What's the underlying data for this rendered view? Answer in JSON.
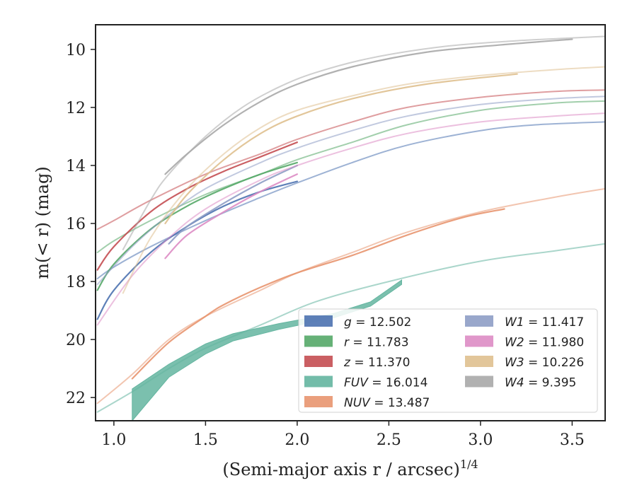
{
  "chart_data": {
    "type": "line",
    "title": "",
    "xlabel": "(Semi-major axis r / arcsec)",
    "xlabel_power": "1/4",
    "ylabel": "m(< r) (mag)",
    "xlim": [
      0.9,
      3.68
    ],
    "ylim": [
      22.8,
      9.15
    ],
    "y_inverted": true,
    "x_ticks": [
      1.0,
      1.5,
      2.0,
      2.5,
      3.0,
      3.5
    ],
    "x_tick_labels": [
      "1.0",
      "1.5",
      "2.0",
      "2.5",
      "3.0",
      "3.5"
    ],
    "y_ticks": [
      10,
      12,
      14,
      16,
      18,
      20,
      22
    ],
    "y_tick_labels": [
      "10",
      "12",
      "14",
      "16",
      "18",
      "20",
      "22"
    ],
    "grid": false,
    "legend_position": "lower-right",
    "series": [
      {
        "name": "g",
        "value": "12.502",
        "color": "#4c72b0",
        "curves": [
          [
            [
              0.91,
              17.9
            ],
            [
              1.0,
              17.5
            ],
            [
              1.2,
              16.8
            ],
            [
              1.5,
              15.9
            ],
            [
              1.8,
              15.1
            ],
            [
              2.0,
              14.6
            ],
            [
              2.3,
              13.9
            ],
            [
              2.6,
              13.3
            ],
            [
              3.0,
              12.8
            ],
            [
              3.3,
              12.6
            ],
            [
              3.68,
              12.5
            ]
          ],
          [
            [
              0.91,
              19.3
            ],
            [
              1.0,
              18.3
            ],
            [
              1.2,
              17.0
            ],
            [
              1.4,
              16.1
            ],
            [
              1.6,
              15.4
            ],
            [
              1.8,
              14.9
            ],
            [
              2.0,
              14.55
            ]
          ]
        ]
      },
      {
        "name": "r",
        "value": "11.783",
        "color": "#55a868",
        "curves": [
          [
            [
              0.91,
              17.0
            ],
            [
              1.0,
              16.6
            ],
            [
              1.2,
              15.9
            ],
            [
              1.5,
              15.0
            ],
            [
              1.8,
              14.3
            ],
            [
              2.0,
              13.8
            ],
            [
              2.3,
              13.2
            ],
            [
              2.6,
              12.6
            ],
            [
              3.0,
              12.1
            ],
            [
              3.4,
              11.85
            ],
            [
              3.68,
              11.78
            ]
          ],
          [
            [
              0.91,
              18.3
            ],
            [
              1.0,
              17.4
            ],
            [
              1.2,
              16.2
            ],
            [
              1.4,
              15.4
            ],
            [
              1.6,
              14.8
            ],
            [
              1.8,
              14.3
            ],
            [
              2.0,
              13.9
            ]
          ]
        ]
      },
      {
        "name": "z",
        "value": "11.370",
        "color": "#c44e52",
        "curves": [
          [
            [
              0.91,
              16.2
            ],
            [
              1.0,
              15.9
            ],
            [
              1.2,
              15.2
            ],
            [
              1.5,
              14.3
            ],
            [
              1.8,
              13.6
            ],
            [
              2.0,
              13.1
            ],
            [
              2.3,
              12.5
            ],
            [
              2.6,
              12.0
            ],
            [
              3.0,
              11.65
            ],
            [
              3.4,
              11.45
            ],
            [
              3.68,
              11.4
            ]
          ],
          [
            [
              0.91,
              17.6
            ],
            [
              1.0,
              16.8
            ],
            [
              1.2,
              15.6
            ],
            [
              1.4,
              14.8
            ],
            [
              1.6,
              14.2
            ],
            [
              1.8,
              13.7
            ],
            [
              2.0,
              13.2
            ]
          ]
        ]
      },
      {
        "name": "FUV",
        "value": "16.014",
        "color": "#64b5a0",
        "curves": [
          [
            [
              0.91,
              22.5
            ],
            [
              1.1,
              21.8
            ],
            [
              1.3,
              21.0
            ],
            [
              1.5,
              20.3
            ],
            [
              1.8,
              19.5
            ],
            [
              2.1,
              18.7
            ],
            [
              2.5,
              18.0
            ],
            [
              3.0,
              17.3
            ],
            [
              3.4,
              16.95
            ],
            [
              3.68,
              16.7
            ]
          ]
        ],
        "bands": [
          [
            [
              1.1,
              21.7
            ],
            [
              1.3,
              20.85
            ],
            [
              1.5,
              20.15
            ],
            [
              1.65,
              19.8
            ],
            [
              1.9,
              19.45
            ],
            [
              2.2,
              19.1
            ],
            [
              2.4,
              18.7
            ],
            [
              2.57,
              17.95
            ]
          ],
          [
            [
              1.1,
              22.8
            ],
            [
              1.3,
              21.3
            ],
            [
              1.5,
              20.5
            ],
            [
              1.65,
              20.05
            ],
            [
              1.9,
              19.65
            ],
            [
              2.2,
              19.25
            ],
            [
              2.4,
              18.85
            ],
            [
              2.57,
              18.1
            ]
          ]
        ]
      },
      {
        "name": "NUV",
        "value": "13.487",
        "color": "#e8956f",
        "curves": [
          [
            [
              0.91,
              22.2
            ],
            [
              1.1,
              21.2
            ],
            [
              1.3,
              20.0
            ],
            [
              1.5,
              19.2
            ],
            [
              1.8,
              18.3
            ],
            [
              2.0,
              17.7
            ],
            [
              2.3,
              17.0
            ],
            [
              2.6,
              16.3
            ],
            [
              3.0,
              15.6
            ],
            [
              3.4,
              15.1
            ],
            [
              3.68,
              14.8
            ]
          ],
          [
            [
              1.1,
              21.35
            ],
            [
              1.3,
              20.1
            ],
            [
              1.5,
              19.2
            ],
            [
              1.6,
              18.8
            ],
            [
              1.8,
              18.2
            ],
            [
              2.0,
              17.7
            ],
            [
              2.3,
              17.1
            ],
            [
              2.6,
              16.4
            ],
            [
              2.9,
              15.8
            ],
            [
              3.13,
              15.5
            ]
          ]
        ]
      },
      {
        "name": "W1",
        "value": "11.417",
        "color": "#8e9dc5",
        "curves": [
          [
            [
              0.91,
              18.1
            ],
            [
              1.1,
              16.8
            ],
            [
              1.3,
              15.7
            ],
            [
              1.5,
              14.8
            ],
            [
              1.8,
              13.9
            ],
            [
              2.0,
              13.4
            ],
            [
              2.3,
              12.8
            ],
            [
              2.6,
              12.3
            ],
            [
              3.0,
              11.9
            ],
            [
              3.4,
              11.7
            ],
            [
              3.68,
              11.62
            ]
          ],
          [
            [
              1.3,
              16.7
            ],
            [
              1.4,
              16.1
            ],
            [
              1.6,
              15.3
            ],
            [
              1.8,
              14.6
            ],
            [
              2.0,
              14.0
            ]
          ]
        ]
      },
      {
        "name": "W2",
        "value": "11.980",
        "color": "#dd8cc4",
        "curves": [
          [
            [
              0.91,
              19.5
            ],
            [
              1.1,
              17.8
            ],
            [
              1.3,
              16.5
            ],
            [
              1.5,
              15.5
            ],
            [
              1.8,
              14.5
            ],
            [
              2.0,
              14.0
            ],
            [
              2.3,
              13.4
            ],
            [
              2.6,
              12.9
            ],
            [
              3.0,
              12.5
            ],
            [
              3.4,
              12.3
            ],
            [
              3.68,
              12.2
            ]
          ],
          [
            [
              1.28,
              17.2
            ],
            [
              1.4,
              16.4
            ],
            [
              1.6,
              15.6
            ],
            [
              1.8,
              14.9
            ],
            [
              2.0,
              14.3
            ]
          ]
        ]
      },
      {
        "name": "W3",
        "value": "10.226",
        "color": "#dfc08f",
        "curves": [
          [
            [
              1.05,
              18.4
            ],
            [
              1.2,
              16.5
            ],
            [
              1.4,
              14.8
            ],
            [
              1.6,
              13.6
            ],
            [
              1.8,
              12.7
            ],
            [
              2.0,
              12.1
            ],
            [
              2.3,
              11.6
            ],
            [
              2.6,
              11.2
            ],
            [
              3.0,
              10.9
            ],
            [
              3.4,
              10.7
            ],
            [
              3.68,
              10.6
            ]
          ],
          [
            [
              1.28,
              16.0
            ],
            [
              1.4,
              15.0
            ],
            [
              1.6,
              13.8
            ],
            [
              1.8,
              12.9
            ],
            [
              2.0,
              12.3
            ],
            [
              2.3,
              11.7
            ],
            [
              2.7,
              11.2
            ],
            [
              3.2,
              10.85
            ]
          ]
        ]
      },
      {
        "name": "W4",
        "value": "9.395",
        "color": "#a8a8a8",
        "curves": [
          [
            [
              1.05,
              16.9
            ],
            [
              1.2,
              15.2
            ],
            [
              1.3,
              14.3
            ],
            [
              1.5,
              13.0
            ],
            [
              1.7,
              12.0
            ],
            [
              1.9,
              11.3
            ],
            [
              2.1,
              10.8
            ],
            [
              2.4,
              10.3
            ],
            [
              2.8,
              9.9
            ],
            [
              3.2,
              9.7
            ],
            [
              3.68,
              9.55
            ]
          ],
          [
            [
              1.28,
              14.3
            ],
            [
              1.4,
              13.6
            ],
            [
              1.6,
              12.6
            ],
            [
              1.8,
              11.8
            ],
            [
              2.0,
              11.2
            ],
            [
              2.3,
              10.6
            ],
            [
              2.7,
              10.1
            ],
            [
              3.1,
              9.85
            ],
            [
              3.5,
              9.65
            ]
          ]
        ]
      }
    ],
    "legend_columns": [
      [
        "g",
        "r",
        "z",
        "FUV",
        "NUV"
      ],
      [
        "W1",
        "W2",
        "W3",
        "W4"
      ]
    ]
  }
}
